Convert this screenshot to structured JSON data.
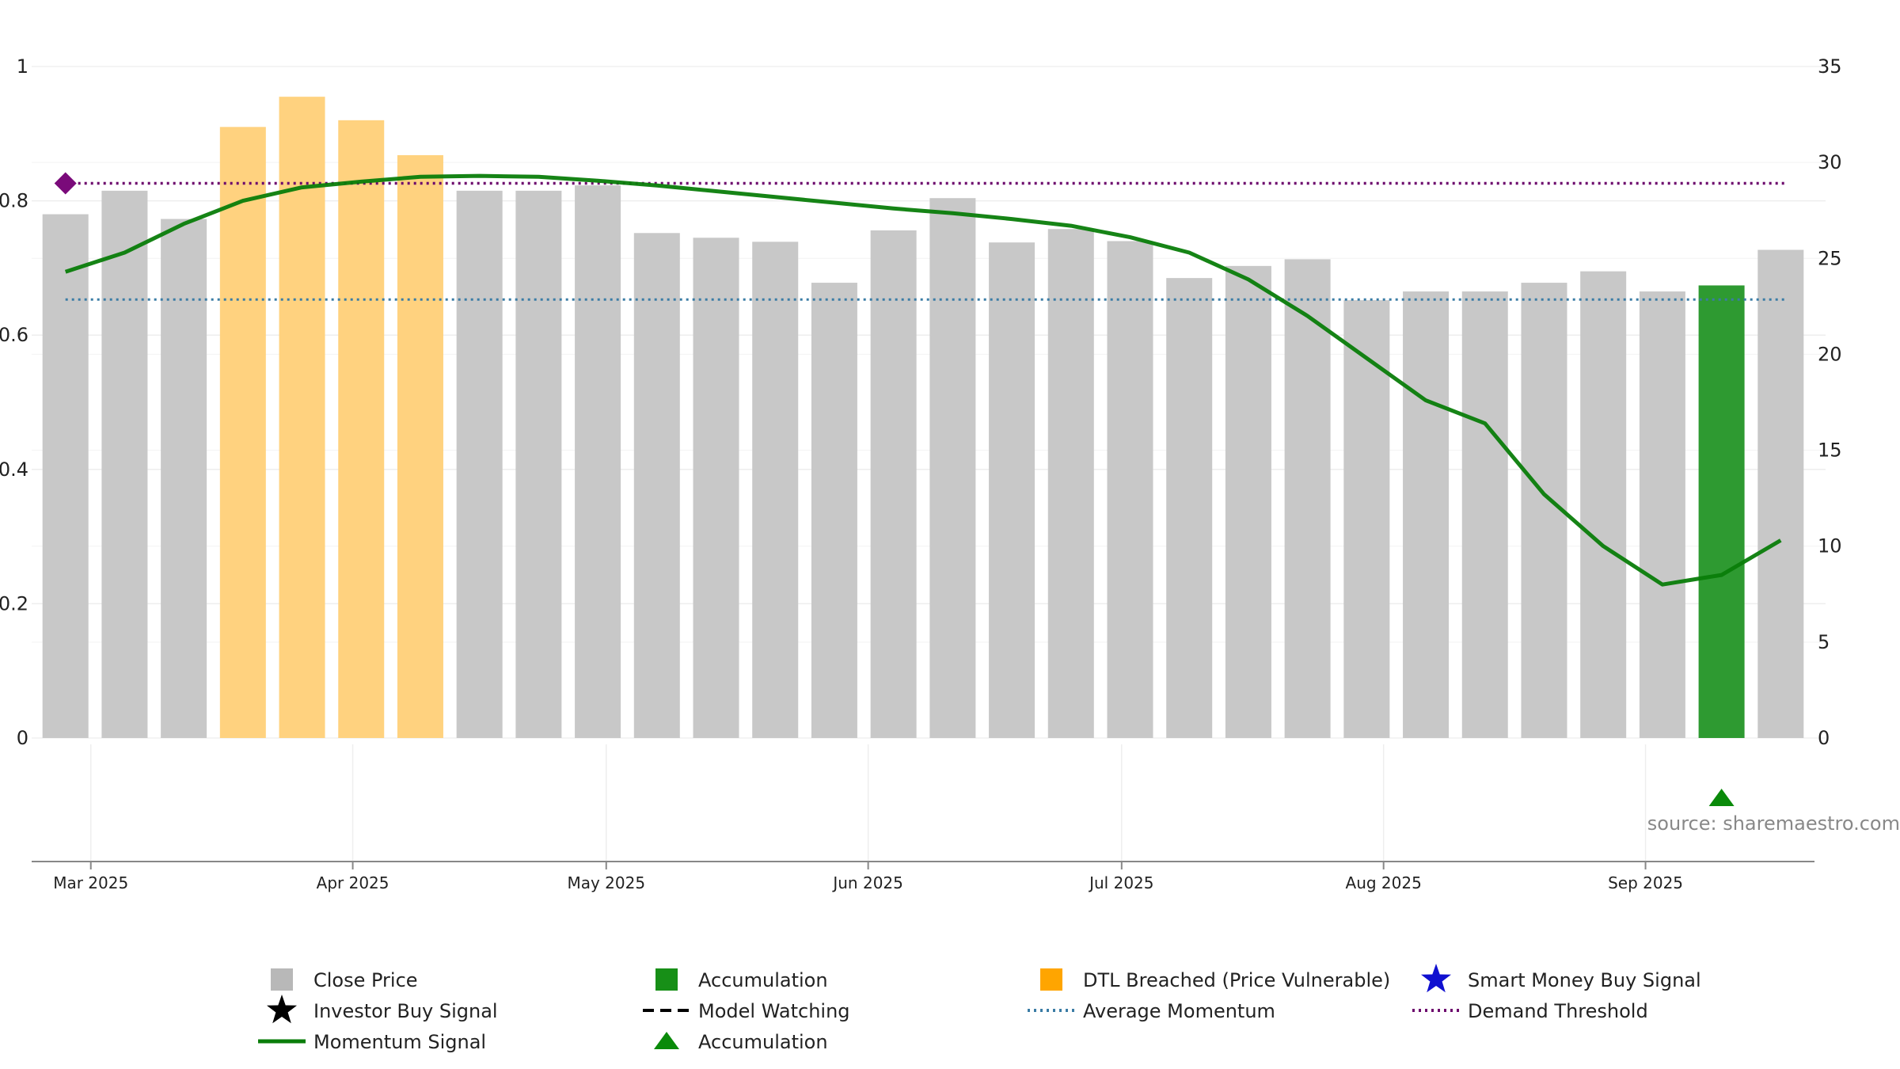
{
  "chart_data": {
    "type": "bar",
    "title": "",
    "xlabel": "",
    "ylabel": "",
    "ylim_left": [
      0,
      1
    ],
    "ylim_right": [
      0,
      35
    ],
    "yticks_left": [
      "0",
      "0.2",
      "0.4",
      "0.6",
      "0.8",
      "1"
    ],
    "yticks_left_values": [
      0,
      0.2,
      0.4,
      0.6,
      0.8,
      1
    ],
    "yticks_right": [
      "0",
      "5",
      "10",
      "15",
      "20",
      "25",
      "30",
      "35"
    ],
    "yticks_right_values": [
      0,
      5,
      10,
      15,
      20,
      25,
      30,
      35
    ],
    "x_range": [
      "2025-02-22",
      "2025-09-21"
    ],
    "x_ticks": [
      {
        "label": "Mar 2025",
        "date": "2025-03-01"
      },
      {
        "label": "Apr 2025",
        "date": "2025-04-01"
      },
      {
        "label": "May 2025",
        "date": "2025-05-01"
      },
      {
        "label": "Jun 2025",
        "date": "2025-06-01"
      },
      {
        "label": "Jul 2025",
        "date": "2025-07-01"
      },
      {
        "label": "Aug 2025",
        "date": "2025-08-01"
      },
      {
        "label": "Sep 2025",
        "date": "2025-09-01"
      }
    ],
    "grid": true,
    "legend_position": "bottom",
    "bars": [
      {
        "date": "2025-02-26",
        "value": 0.78,
        "category": "close"
      },
      {
        "date": "2025-03-05",
        "value": 0.815,
        "category": "close"
      },
      {
        "date": "2025-03-12",
        "value": 0.773,
        "category": "close"
      },
      {
        "date": "2025-03-19",
        "value": 0.91,
        "category": "dtl"
      },
      {
        "date": "2025-03-26",
        "value": 0.955,
        "category": "dtl"
      },
      {
        "date": "2025-04-02",
        "value": 0.92,
        "category": "dtl"
      },
      {
        "date": "2025-04-09",
        "value": 0.868,
        "category": "dtl"
      },
      {
        "date": "2025-04-16",
        "value": 0.815,
        "category": "close"
      },
      {
        "date": "2025-04-23",
        "value": 0.815,
        "category": "close"
      },
      {
        "date": "2025-04-30",
        "value": 0.823,
        "category": "close"
      },
      {
        "date": "2025-05-07",
        "value": 0.752,
        "category": "close"
      },
      {
        "date": "2025-05-14",
        "value": 0.745,
        "category": "close"
      },
      {
        "date": "2025-05-21",
        "value": 0.739,
        "category": "close"
      },
      {
        "date": "2025-05-28",
        "value": 0.678,
        "category": "close"
      },
      {
        "date": "2025-06-04",
        "value": 0.756,
        "category": "close"
      },
      {
        "date": "2025-06-11",
        "value": 0.804,
        "category": "close"
      },
      {
        "date": "2025-06-18",
        "value": 0.738,
        "category": "close"
      },
      {
        "date": "2025-06-25",
        "value": 0.758,
        "category": "close"
      },
      {
        "date": "2025-07-02",
        "value": 0.74,
        "category": "close"
      },
      {
        "date": "2025-07-09",
        "value": 0.685,
        "category": "close"
      },
      {
        "date": "2025-07-16",
        "value": 0.703,
        "category": "close"
      },
      {
        "date": "2025-07-23",
        "value": 0.713,
        "category": "close"
      },
      {
        "date": "2025-07-30",
        "value": 0.652,
        "category": "close"
      },
      {
        "date": "2025-08-06",
        "value": 0.665,
        "category": "close"
      },
      {
        "date": "2025-08-13",
        "value": 0.665,
        "category": "close"
      },
      {
        "date": "2025-08-20",
        "value": 0.678,
        "category": "close"
      },
      {
        "date": "2025-08-27",
        "value": 0.695,
        "category": "close"
      },
      {
        "date": "2025-09-03",
        "value": 0.665,
        "category": "close"
      },
      {
        "date": "2025-09-10",
        "value": 0.674,
        "category": "accumulation"
      },
      {
        "date": "2025-09-17",
        "value": 0.727,
        "category": "close"
      }
    ],
    "momentum_signal": [
      {
        "date": "2025-02-26",
        "value": 24.3
      },
      {
        "date": "2025-03-05",
        "value": 25.3
      },
      {
        "date": "2025-03-12",
        "value": 26.8
      },
      {
        "date": "2025-03-19",
        "value": 28.0
      },
      {
        "date": "2025-03-26",
        "value": 28.7
      },
      {
        "date": "2025-04-02",
        "value": 29.0
      },
      {
        "date": "2025-04-09",
        "value": 29.25
      },
      {
        "date": "2025-04-16",
        "value": 29.3
      },
      {
        "date": "2025-04-23",
        "value": 29.25
      },
      {
        "date": "2025-04-30",
        "value": 29.05
      },
      {
        "date": "2025-05-07",
        "value": 28.8
      },
      {
        "date": "2025-05-14",
        "value": 28.5
      },
      {
        "date": "2025-05-21",
        "value": 28.2
      },
      {
        "date": "2025-05-28",
        "value": 27.9
      },
      {
        "date": "2025-06-04",
        "value": 27.6
      },
      {
        "date": "2025-06-11",
        "value": 27.35
      },
      {
        "date": "2025-06-18",
        "value": 27.05
      },
      {
        "date": "2025-06-25",
        "value": 26.7
      },
      {
        "date": "2025-07-02",
        "value": 26.1
      },
      {
        "date": "2025-07-09",
        "value": 25.3
      },
      {
        "date": "2025-07-16",
        "value": 23.9
      },
      {
        "date": "2025-07-23",
        "value": 22.0
      },
      {
        "date": "2025-07-30",
        "value": 19.8
      },
      {
        "date": "2025-08-06",
        "value": 17.6
      },
      {
        "date": "2025-08-13",
        "value": 16.4
      },
      {
        "date": "2025-08-20",
        "value": 12.7
      },
      {
        "date": "2025-08-27",
        "value": 10.0
      },
      {
        "date": "2025-09-03",
        "value": 8.0
      },
      {
        "date": "2025-09-10",
        "value": 8.5
      },
      {
        "date": "2025-09-17",
        "value": 10.3
      }
    ],
    "average_momentum": 0.653,
    "demand_threshold": 0.826,
    "demand_marker": {
      "date": "2025-02-26",
      "value": 0.826
    },
    "accumulation_marker": {
      "date": "2025-09-10"
    },
    "colors": {
      "close": "#c8c8c8",
      "dtl": "#ffd27f",
      "accumulation": "#2e9a31",
      "momentum": "#0a7d0a",
      "average_momentum": "#3a7ca5",
      "demand_threshold": "#6d0a6d",
      "marker_purple": "#7a0a7a",
      "marker_green": "#0a8a0a",
      "axis": "#888888",
      "grid": "#eeeeee"
    },
    "legend": [
      {
        "label": "Close Price",
        "symbol": "square",
        "color": "#b8b8b8"
      },
      {
        "label": "Accumulation",
        "symbol": "square",
        "color": "#178f17"
      },
      {
        "label": "DTL Breached (Price Vulnerable)",
        "symbol": "square",
        "color": "#ffa500"
      },
      {
        "label": "Smart Money Buy Signal",
        "symbol": "star",
        "color": "#1010d0"
      },
      {
        "label": "Investor Buy Signal",
        "symbol": "star",
        "color": "#000000"
      },
      {
        "label": "Model Watching",
        "symbol": "dash",
        "color": "#000000"
      },
      {
        "label": "Average Momentum",
        "symbol": "dotted",
        "color": "#3a7ca5"
      },
      {
        "label": "Demand Threshold",
        "symbol": "dotted",
        "color": "#6d0a6d"
      },
      {
        "label": "Momentum Signal",
        "symbol": "line",
        "color": "#0a7d0a"
      },
      {
        "label": "Accumulation",
        "symbol": "triangle",
        "color": "#0a8a0a"
      }
    ],
    "source": "source: sharemaestro.com"
  }
}
